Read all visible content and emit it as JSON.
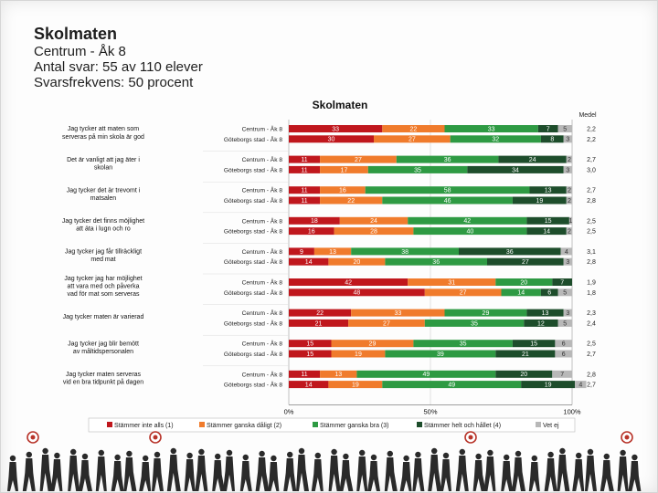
{
  "header": {
    "title": "Skolmaten",
    "line1": "Centrum - Åk 8",
    "line2": "Antal svar: 55 av 110 elever",
    "line3": "Svarsfrekvens: 50 procent"
  },
  "chart_data": {
    "type": "bar",
    "orientation": "horizontal-stacked-100",
    "title": "Skolmaten",
    "mean_header": "Medel",
    "x_ticks": [
      "0%",
      "50%",
      "100%"
    ],
    "xlim": [
      0,
      100
    ],
    "legend": [
      "Stämmer inte alls (1)",
      "Stämmer ganska dåligt (2)",
      "Stämmer ganska bra (3)",
      "Stämmer helt och hållet (4)",
      "Vet ej"
    ],
    "colors": [
      "#c0171d",
      "#f07b2c",
      "#2e9a43",
      "#1d4d2b",
      "#b8b8b8"
    ],
    "label_colors": [
      "#ffffff",
      "#ffffff",
      "#ffffff",
      "#ffffff",
      "#ffffff"
    ],
    "questions": [
      {
        "label": [
          "Jag tycker att maten som",
          "serveras på min skola är god"
        ],
        "rows": [
          {
            "name": "Centrum - Åk 8",
            "values": [
              33,
              22,
              33,
              7,
              5
            ],
            "mean": "2,2"
          },
          {
            "name": "Göteborgs stad - Åk 8",
            "values": [
              30,
              27,
              32,
              8,
              3
            ],
            "mean": "2,2"
          }
        ]
      },
      {
        "label": [
          "Det är vanligt att jag äter i",
          "skolan"
        ],
        "rows": [
          {
            "name": "Centrum - Åk 8",
            "values": [
              11,
              27,
              36,
              24,
              2
            ],
            "mean": "2,7"
          },
          {
            "name": "Göteborgs stad - Åk 8",
            "values": [
              11,
              17,
              35,
              34,
              3
            ],
            "mean": "3,0"
          }
        ]
      },
      {
        "label": [
          "Jag tycker det är trevomt i",
          "matsalen"
        ],
        "rows": [
          {
            "name": "Centrum - Åk 8",
            "values": [
              11,
              16,
              58,
              13,
              2
            ],
            "mean": "2,7"
          },
          {
            "name": "Göteborgs stad - Åk 8",
            "values": [
              11,
              22,
              46,
              19,
              2
            ],
            "mean": "2,8"
          }
        ]
      },
      {
        "label": [
          "Jag tycker det finns möjlighet",
          "att äta i lugn och ro"
        ],
        "rows": [
          {
            "name": "Centrum - Åk 8",
            "values": [
              18,
              24,
              42,
              15,
              1
            ],
            "mean": "2,5"
          },
          {
            "name": "Göteborgs stad - Åk 8",
            "values": [
              16,
              28,
              40,
              14,
              2
            ],
            "mean": "2,5"
          }
        ]
      },
      {
        "label": [
          "Jag tycker jag får tillräckligt",
          "med mat"
        ],
        "rows": [
          {
            "name": "Centrum - Åk 8",
            "values": [
              9,
              13,
              38,
              36,
              4
            ],
            "mean": "3,1"
          },
          {
            "name": "Göteborgs stad - Åk 8",
            "values": [
              14,
              20,
              36,
              27,
              3
            ],
            "mean": "2,8"
          }
        ]
      },
      {
        "label": [
          "Jag tycker jag har möjlighet",
          "att vara med och påverka",
          "vad för mat som serveras"
        ],
        "rows": [
          {
            "name": "Centrum - Åk 8",
            "values": [
              42,
              31,
              20,
              7,
              0
            ],
            "mean": "1,9"
          },
          {
            "name": "Göteborgs stad - Åk 8",
            "values": [
              48,
              27,
              14,
              6,
              5
            ],
            "mean": "1,8"
          }
        ]
      },
      {
        "label": [
          "Jag tycker maten är varierad"
        ],
        "rows": [
          {
            "name": "Centrum - Åk 8",
            "values": [
              22,
              33,
              29,
              13,
              3
            ],
            "mean": "2,3"
          },
          {
            "name": "Göteborgs stad - Åk 8",
            "values": [
              21,
              27,
              35,
              12,
              5
            ],
            "mean": "2,4"
          }
        ]
      },
      {
        "label": [
          "Jag tycker jag blir bemött",
          "av måltidspersonalen"
        ],
        "rows": [
          {
            "name": "Centrum - Åk 8",
            "values": [
              15,
              29,
              35,
              15,
              6
            ],
            "mean": "2,5"
          },
          {
            "name": "Göteborgs stad - Åk 8",
            "values": [
              15,
              19,
              39,
              21,
              6
            ],
            "mean": "2,7"
          }
        ]
      },
      {
        "label": [
          "Jag tycker maten serveras",
          "vid en bra tidpunkt på dagen"
        ],
        "rows": [
          {
            "name": "Centrum - Åk 8",
            "values": [
              11,
              13,
              49,
              20,
              7
            ],
            "mean": "2,8"
          },
          {
            "name": "Göteborgs stad - Åk 8",
            "values": [
              14,
              19,
              49,
              19,
              4
            ],
            "mean": "2,7"
          }
        ]
      }
    ]
  }
}
